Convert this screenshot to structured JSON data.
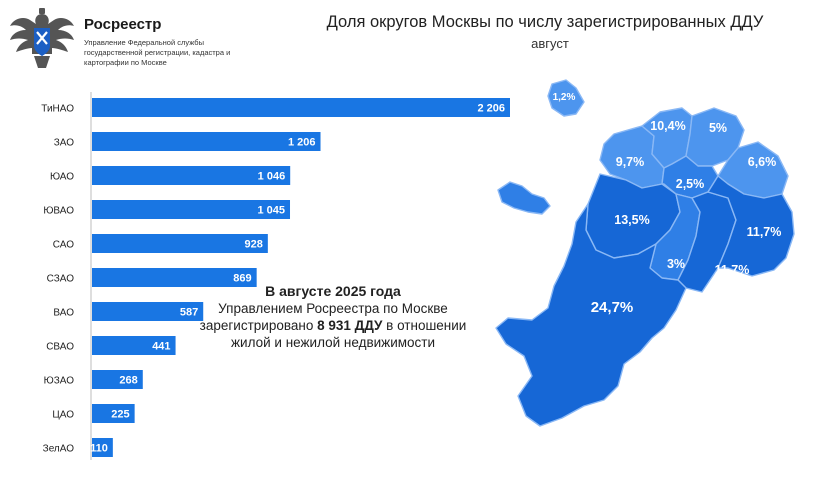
{
  "brand": {
    "name": "Росреестр",
    "subtitle": "Управление Федеральной службы государственной регистрации, кадастра и картографии по Москве"
  },
  "header": {
    "title": "Доля округов Москвы по числу зарегистрированных ДДУ",
    "subtitle": "август"
  },
  "note": {
    "line1": "В августе 2025 года",
    "line2_a": "Управлением Росреестра по Москве зарегистрировано ",
    "line2_b": "8 931 ДДУ",
    "line3": " в отношении жилой и нежилой недвижимости"
  },
  "colors": {
    "bar": "#1976e3",
    "map_dark": "#1667d6",
    "map_mid": "#2f7fe6",
    "map_light": "#4d95ee",
    "map_border": "#8ab8f5"
  },
  "chart_data": [
    {
      "type": "bar",
      "orientation": "horizontal",
      "categories": [
        "ТиНАО",
        "ЗАО",
        "ЮАО",
        "ЮВАО",
        "САО",
        "СЗАО",
        "ВАО",
        "СВАО",
        "ЮЗАО",
        "ЦАО",
        "ЗелАО"
      ],
      "values": [
        2206,
        1206,
        1046,
        1045,
        928,
        869,
        587,
        441,
        268,
        225,
        110
      ],
      "value_labels": [
        "2 206",
        "1 206",
        "1 046",
        "1 045",
        "928",
        "869",
        "587",
        "441",
        "268",
        "225",
        "110"
      ],
      "xlim": [
        0,
        2206
      ],
      "grid": false,
      "legend": "none"
    },
    {
      "type": "map",
      "regions": [
        {
          "label": "1,2%",
          "value": 1.2
        },
        {
          "label": "10,4%",
          "value": 10.4
        },
        {
          "label": "5%",
          "value": 5
        },
        {
          "label": "9,7%",
          "value": 9.7
        },
        {
          "label": "6,6%",
          "value": 6.6
        },
        {
          "label": "2,5%",
          "value": 2.5
        },
        {
          "label": "13,5%",
          "value": 13.5
        },
        {
          "label": "11,7%",
          "value": 11.7
        },
        {
          "label": "3%",
          "value": 3
        },
        {
          "label": "11,7%",
          "value": 11.7
        },
        {
          "label": "24,7%",
          "value": 24.7
        }
      ]
    }
  ]
}
